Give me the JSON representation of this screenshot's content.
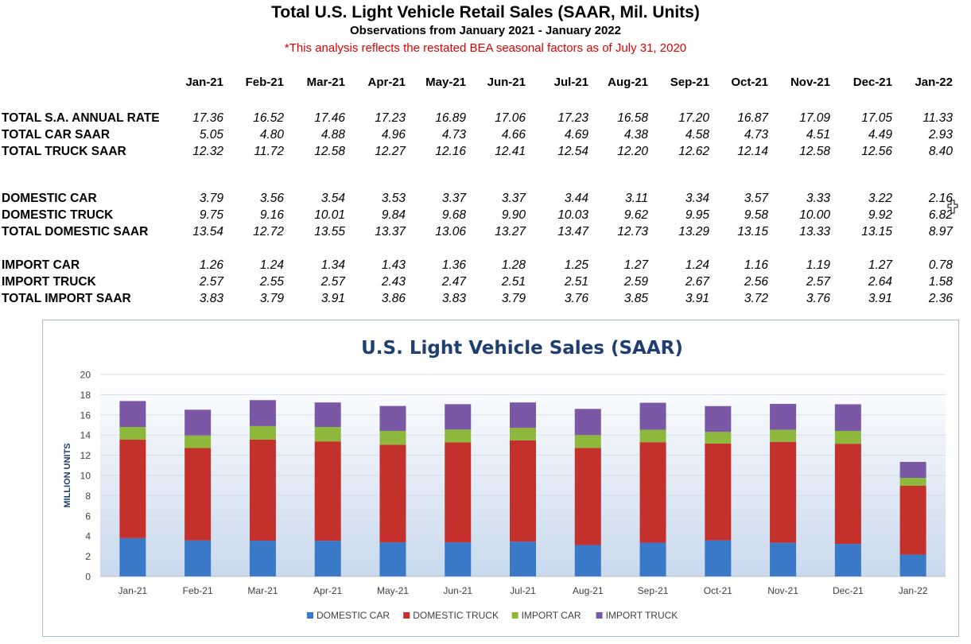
{
  "header": {
    "title": "Total U.S. Light Vehicle Retail Sales (SAAR, Mil. Units)",
    "subtitle": "Observations from  January 2021 - January 2022",
    "note": "*This analysis reflects the restated BEA seasonal factors as of July 31, 2020"
  },
  "table": {
    "months": [
      "Jan-21",
      "Feb-21",
      "Mar-21",
      "Apr-21",
      "May-21",
      "Jun-21",
      "Jul-21",
      "Aug-21",
      "Sep-21",
      "Oct-21",
      "Nov-21",
      "Dec-21",
      "Jan-22"
    ],
    "rows": [
      {
        "label": "TOTAL S.A. ANNUAL RATE",
        "values": [
          "17.36",
          "16.52",
          "17.46",
          "17.23",
          "16.89",
          "17.06",
          "17.23",
          "16.58",
          "17.20",
          "16.87",
          "17.09",
          "17.05",
          "11.33"
        ]
      },
      {
        "label": "TOTAL CAR SAAR",
        "values": [
          "5.05",
          "4.80",
          "4.88",
          "4.96",
          "4.73",
          "4.66",
          "4.69",
          "4.38",
          "4.58",
          "4.73",
          "4.51",
          "4.49",
          "2.93"
        ]
      },
      {
        "label": "TOTAL TRUCK SAAR",
        "values": [
          "12.32",
          "11.72",
          "12.58",
          "12.27",
          "12.16",
          "12.41",
          "12.54",
          "12.20",
          "12.62",
          "12.14",
          "12.58",
          "12.56",
          "8.40"
        ]
      },
      {
        "label": "DOMESTIC CAR",
        "values": [
          "3.79",
          "3.56",
          "3.54",
          "3.53",
          "3.37",
          "3.37",
          "3.44",
          "3.11",
          "3.34",
          "3.57",
          "3.33",
          "3.22",
          "2.16"
        ]
      },
      {
        "label": "DOMESTIC TRUCK",
        "values": [
          "9.75",
          "9.16",
          "10.01",
          "9.84",
          "9.68",
          "9.90",
          "10.03",
          "9.62",
          "9.95",
          "9.58",
          "10.00",
          "9.92",
          "6.82"
        ]
      },
      {
        "label": "TOTAL DOMESTIC SAAR",
        "values": [
          "13.54",
          "12.72",
          "13.55",
          "13.37",
          "13.06",
          "13.27",
          "13.47",
          "12.73",
          "13.29",
          "13.15",
          "13.33",
          "13.15",
          "8.97"
        ]
      },
      {
        "label": "IMPORT CAR",
        "values": [
          "1.26",
          "1.24",
          "1.34",
          "1.43",
          "1.36",
          "1.28",
          "1.25",
          "1.27",
          "1.24",
          "1.16",
          "1.19",
          "1.27",
          "0.78"
        ]
      },
      {
        "label": "IMPORT TRUCK",
        "values": [
          "2.57",
          "2.55",
          "2.57",
          "2.43",
          "2.47",
          "2.51",
          "2.51",
          "2.59",
          "2.67",
          "2.56",
          "2.57",
          "2.64",
          "1.58"
        ]
      },
      {
        "label": "TOTAL IMPORT SAAR",
        "values": [
          "3.83",
          "3.79",
          "3.91",
          "3.86",
          "3.83",
          "3.79",
          "3.76",
          "3.85",
          "3.91",
          "3.72",
          "3.76",
          "3.91",
          "2.36"
        ]
      }
    ]
  },
  "chart_data": {
    "type": "bar",
    "stacked": true,
    "title": "U.S. Light Vehicle Sales (SAAR)",
    "xlabel": "",
    "ylabel": "MILLION UNITS",
    "ylim": [
      0,
      20
    ],
    "yticks": [
      0,
      2,
      4,
      6,
      8,
      10,
      12,
      14,
      16,
      18,
      20
    ],
    "grid": true,
    "legend": "bottom",
    "categories": [
      "Jan-21",
      "Feb-21",
      "Mar-21",
      "Apr-21",
      "May-21",
      "Jun-21",
      "Jul-21",
      "Aug-21",
      "Sep-21",
      "Oct-21",
      "Nov-21",
      "Dec-21",
      "Jan-22"
    ],
    "series": [
      {
        "name": "DOMESTIC CAR",
        "color": "#3a78c8",
        "values": [
          3.79,
          3.56,
          3.54,
          3.53,
          3.37,
          3.37,
          3.44,
          3.11,
          3.34,
          3.57,
          3.33,
          3.22,
          2.16
        ]
      },
      {
        "name": "DOMESTIC TRUCK",
        "color": "#c4302b",
        "values": [
          9.75,
          9.16,
          10.01,
          9.84,
          9.68,
          9.9,
          10.03,
          9.62,
          9.95,
          9.58,
          10.0,
          9.92,
          6.82
        ]
      },
      {
        "name": "IMPORT CAR",
        "color": "#8db83c",
        "values": [
          1.26,
          1.24,
          1.34,
          1.43,
          1.36,
          1.28,
          1.25,
          1.27,
          1.24,
          1.16,
          1.19,
          1.27,
          0.78
        ]
      },
      {
        "name": "IMPORT TRUCK",
        "color": "#7a58a6",
        "values": [
          2.57,
          2.55,
          2.57,
          2.43,
          2.47,
          2.51,
          2.51,
          2.59,
          2.67,
          2.56,
          2.57,
          2.64,
          1.58
        ]
      }
    ]
  },
  "colors": {
    "note": "#e00000",
    "chart_title": "#1f3f73",
    "axis_label": "#1f3f73",
    "frame_border": "#a6bcd8"
  },
  "icons": {
    "cursor": "move-cursor-icon"
  }
}
